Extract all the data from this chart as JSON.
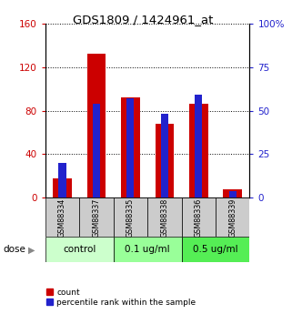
{
  "title": "GDS1809 / 1424961_at",
  "samples": [
    "GSM88334",
    "GSM88337",
    "GSM88335",
    "GSM88338",
    "GSM88336",
    "GSM88339"
  ],
  "red_values": [
    18,
    132,
    92,
    68,
    86,
    8
  ],
  "blue_values": [
    20,
    54,
    57,
    48,
    59,
    4
  ],
  "left_ylim": [
    0,
    160
  ],
  "right_ylim": [
    0,
    100
  ],
  "left_yticks": [
    0,
    40,
    80,
    120,
    160
  ],
  "left_yticklabels": [
    "0",
    "40",
    "80",
    "120",
    "160"
  ],
  "right_yticks": [
    0,
    25,
    50,
    75,
    100
  ],
  "right_yticklabels": [
    "0",
    "25",
    "50",
    "75",
    "100%"
  ],
  "bar_color_red": "#cc0000",
  "bar_color_blue": "#2222cc",
  "groups": [
    {
      "label": "control",
      "indices": [
        0,
        1
      ],
      "bg": "#ccffcc"
    },
    {
      "label": "0.1 ug/ml",
      "indices": [
        2,
        3
      ],
      "bg": "#99ff99"
    },
    {
      "label": "0.5 ug/ml",
      "indices": [
        4,
        5
      ],
      "bg": "#55ee55"
    }
  ],
  "dose_label": "dose",
  "legend_red": "count",
  "legend_blue": "percentile rank within the sample",
  "tick_label_bg": "#cccccc",
  "fig_bg": "#ffffff"
}
